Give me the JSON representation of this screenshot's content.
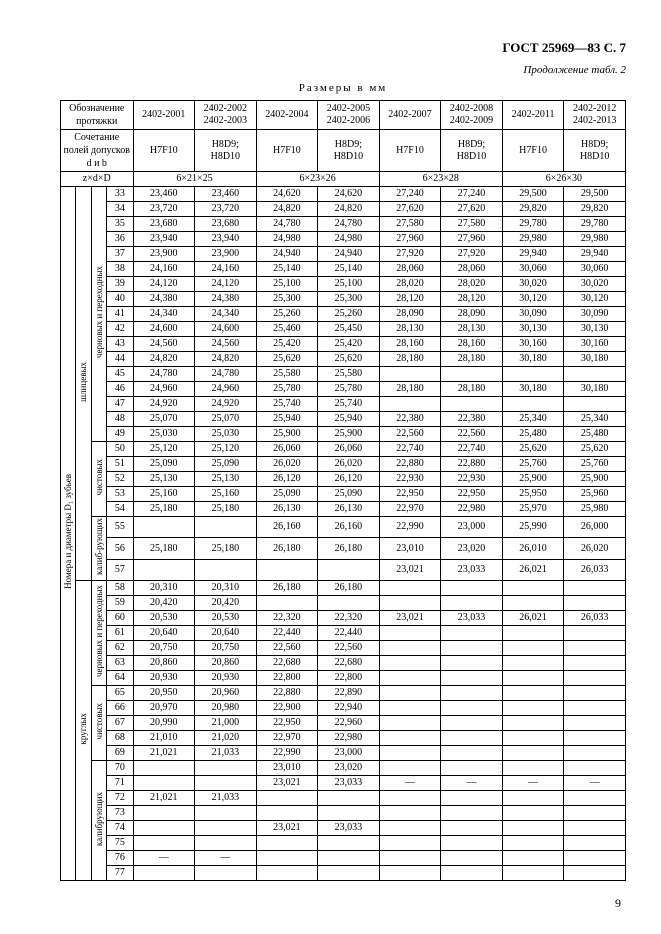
{
  "header": "ГОСТ 25969—83 С. 7",
  "continuation": "Продолжение табл. 2",
  "dimensions": "Размеры в мм",
  "page_number": "9",
  "labels": {
    "designation": "Обозначение протяжки",
    "tolerance": "Сочетание полей допусков d и b",
    "zdd": "z×d×D",
    "main_vert": "Номера и диаметры D₁ зубьев",
    "spline": "шлицевых",
    "round": "круглых",
    "rough": "черновых и переходных",
    "finish": "чистовых",
    "calib": "калибрующих",
    "calib2": "калиб-рующих"
  },
  "cols": [
    {
      "d": "2402-2001",
      "t": "H7F10"
    },
    {
      "d": "2402-2002 2402-2003",
      "t": "H8D9; H8D10"
    },
    {
      "d": "2402-2004",
      "t": "H7F10"
    },
    {
      "d": "2402-2005 2402-2006",
      "t": "H8D9; H8D10"
    },
    {
      "d": "2402-2007",
      "t": "H7F10"
    },
    {
      "d": "2402-2008 2402-2009",
      "t": "H8D9; H8D10"
    },
    {
      "d": "2402-2011",
      "t": "H7F10"
    },
    {
      "d": "2402-2012 2402-2013",
      "t": "H8D9; H8D10"
    }
  ],
  "zdd_vals": [
    "6×21×25",
    "6×23×26",
    "6×23×28",
    "6×26×30"
  ],
  "rows_spline_rough": [
    [
      "33",
      "23,460",
      "23,460",
      "24,620",
      "24,620",
      "27,240",
      "27,240",
      "29,500",
      "29,500"
    ],
    [
      "34",
      "23,720",
      "23,720",
      "24,820",
      "24,820",
      "27,620",
      "27,620",
      "29,820",
      "29,820"
    ],
    [
      "35",
      "23,680",
      "23,680",
      "24,780",
      "24,780",
      "27,580",
      "27,580",
      "29,780",
      "29,780"
    ],
    [
      "36",
      "23,940",
      "23,940",
      "24,980",
      "24,980",
      "27,960",
      "27,960",
      "29,980",
      "29,980"
    ],
    [
      "37",
      "23,900",
      "23,900",
      "24,940",
      "24,940",
      "27,920",
      "27,920",
      "29,940",
      "29,940"
    ],
    [
      "38",
      "24,160",
      "24,160",
      "25,140",
      "25,140",
      "28,060",
      "28,060",
      "30,060",
      "30,060"
    ],
    [
      "39",
      "24,120",
      "24,120",
      "25,100",
      "25,100",
      "28,020",
      "28,020",
      "30,020",
      "30,020"
    ],
    [
      "40",
      "24,380",
      "24,380",
      "25,300",
      "25,300",
      "28,120",
      "28,120",
      "30,120",
      "30,120"
    ],
    [
      "41",
      "24,340",
      "24,340",
      "25,260",
      "25,260",
      "28,090",
      "28,090",
      "30,090",
      "30,090"
    ],
    [
      "42",
      "24,600",
      "24,600",
      "25,460",
      "25,450",
      "28,130",
      "28,130",
      "30,130",
      "30,130"
    ],
    [
      "43",
      "24,560",
      "24,560",
      "25,420",
      "25,420",
      "28,160",
      "28,160",
      "30,160",
      "30,160"
    ],
    [
      "44",
      "24,820",
      "24,820",
      "25,620",
      "25,620",
      "28,180",
      "28,180",
      "30,180",
      "30,180"
    ],
    [
      "45",
      "24,780",
      "24,780",
      "25,580",
      "25,580",
      "",
      "",
      "",
      ""
    ],
    [
      "46",
      "24,960",
      "24,960",
      "25,780",
      "25,780",
      "28,180",
      "28,180",
      "30,180",
      "30,180"
    ],
    [
      "47",
      "24,920",
      "24,920",
      "25,740",
      "25,740",
      "",
      "",
      "",
      ""
    ],
    [
      "48",
      "25,070",
      "25,070",
      "25,940",
      "25,940",
      "22,380",
      "22,380",
      "25,340",
      "25,340"
    ],
    [
      "49",
      "25,030",
      "25,030",
      "25,900",
      "25,900",
      "22,560",
      "22,560",
      "25,480",
      "25,480"
    ]
  ],
  "rows_spline_finish": [
    [
      "50",
      "25,120",
      "25,120",
      "26,060",
      "26,060",
      "22,740",
      "22,740",
      "25,620",
      "25,620"
    ],
    [
      "51",
      "25,090",
      "25,090",
      "26,020",
      "26,020",
      "22,880",
      "22,880",
      "25,760",
      "25,760"
    ],
    [
      "52",
      "25,130",
      "25,130",
      "26,120",
      "26,120",
      "22,930",
      "22,930",
      "25,900",
      "25,900"
    ],
    [
      "53",
      "25,160",
      "25,160",
      "25,090",
      "25,090",
      "22,950",
      "22,950",
      "25,950",
      "25,960"
    ],
    [
      "54",
      "25,180",
      "25,180",
      "26,130",
      "26,130",
      "22,970",
      "22,980",
      "25,970",
      "25,980"
    ]
  ],
  "rows_spline_calib": [
    [
      "55",
      "",
      "",
      "26,160",
      "26,160",
      "22,990",
      "23,000",
      "25,990",
      "26,000"
    ],
    [
      "56",
      "25,180",
      "25,180",
      "26,180",
      "26,180",
      "23,010",
      "23,020",
      "26,010",
      "26,020"
    ],
    [
      "57",
      "",
      "",
      "",
      "",
      "23,021",
      "23,033",
      "26,021",
      "26,033"
    ]
  ],
  "rows_round_rough": [
    [
      "58",
      "20,310",
      "20,310",
      "26,180",
      "26,180",
      "",
      "",
      "",
      ""
    ],
    [
      "59",
      "20,420",
      "20,420",
      "",
      "",
      "",
      "",
      "",
      ""
    ],
    [
      "60",
      "20,530",
      "20,530",
      "22,320",
      "22,320",
      "23,021",
      "23,033",
      "26,021",
      "26,033"
    ],
    [
      "61",
      "20,640",
      "20,640",
      "22,440",
      "22,440",
      "",
      "",
      "",
      ""
    ],
    [
      "62",
      "20,750",
      "20,750",
      "22,560",
      "22,560",
      "",
      "",
      "",
      ""
    ],
    [
      "63",
      "20,860",
      "20,860",
      "22,680",
      "22,680",
      "",
      "",
      "",
      ""
    ],
    [
      "64",
      "20,930",
      "20,930",
      "22,800",
      "22,800",
      "",
      "",
      "",
      ""
    ]
  ],
  "rows_round_finish": [
    [
      "65",
      "20,950",
      "20,960",
      "22,880",
      "22,890",
      "",
      "",
      "",
      ""
    ],
    [
      "66",
      "20,970",
      "20,980",
      "22,900",
      "22,940",
      "",
      "",
      "",
      ""
    ],
    [
      "67",
      "20,990",
      "21,000",
      "22,950",
      "22,960",
      "",
      "",
      "",
      ""
    ],
    [
      "68",
      "21,010",
      "21,020",
      "22,970",
      "22,980",
      "",
      "",
      "",
      ""
    ],
    [
      "69",
      "21,021",
      "21,033",
      "22,990",
      "23,000",
      "",
      "",
      "",
      ""
    ]
  ],
  "rows_round_calib": [
    [
      "70",
      "",
      "",
      "23,010",
      "23,020",
      "",
      "",
      "",
      ""
    ],
    [
      "71",
      "",
      "",
      "23,021",
      "23,033",
      "—",
      "—",
      "—",
      "—"
    ],
    [
      "72",
      "21,021",
      "21,033",
      "",
      "",
      "",
      "",
      "",
      ""
    ],
    [
      "73",
      "",
      "",
      "",
      "",
      "",
      "",
      "",
      ""
    ],
    [
      "74",
      "",
      "",
      "23,021",
      "23,033",
      "",
      "",
      "",
      ""
    ],
    [
      "75",
      "",
      "",
      "",
      "",
      "",
      "",
      "",
      ""
    ],
    [
      "76",
      "—",
      "—",
      "",
      "",
      "",
      "",
      "",
      ""
    ],
    [
      "77",
      "",
      "",
      "",
      "",
      "",
      "",
      "",
      ""
    ]
  ]
}
